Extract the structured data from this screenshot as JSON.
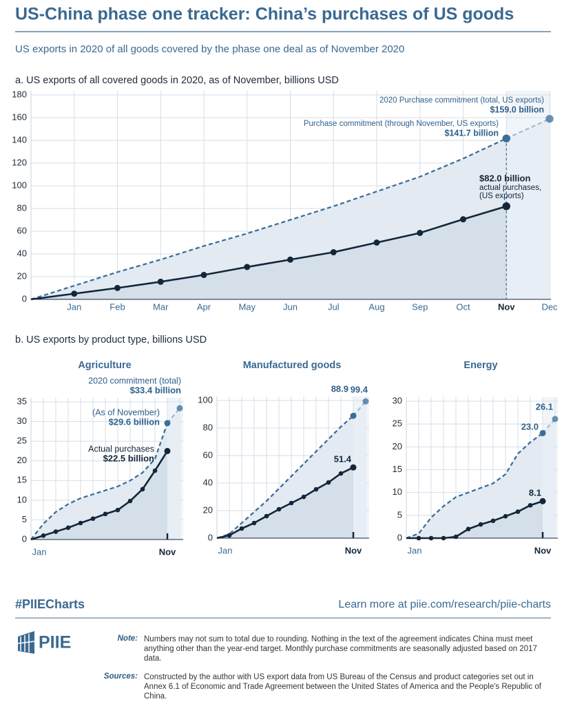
{
  "header": {
    "title": "US-China phase one tracker: China’s purchases of US goods",
    "subtitle": "US exports in 2020 of all goods covered by the phase one deal as of November 2020",
    "section_b": "b. US exports by product type, billions USD"
  },
  "footer": {
    "hashtag": "#PIIECharts",
    "link": "Learn more at piie.com/research/piie-charts",
    "logo": "PIIE",
    "note_label": "Note:",
    "note": "Numbers may not sum to total due to rounding. Nothing in the text of the agreement indicates China must meet anything other than the year-end target. Monthly purchase commitments are seasonally adjusted based on 2017 data.",
    "sources_label": "Sources:",
    "sources": "Constructed by the author with US export data from US Bureau of the Census and product categories set out in Annex 6.1 of Economic and Trade Agreement between the United States of America and the People's Republic of China."
  },
  "chart_data": [
    {
      "type": "line",
      "title": "a. US exports of all covered goods in 2020, as of November, billions USD",
      "categories": [
        null,
        "Jan",
        "Feb",
        "Mar",
        "Apr",
        "May",
        "Jun",
        "Jul",
        "Aug",
        "Sep",
        "Oct",
        "Nov",
        "Dec"
      ],
      "series": [
        {
          "color": "#3b6e99",
          "dashed": true,
          "values": [
            0,
            12,
            24,
            35,
            47,
            58,
            70,
            82,
            95,
            108,
            124,
            141.7,
            159.0
          ],
          "value_labels": [
            null,
            null,
            null,
            null,
            null,
            null,
            null,
            null,
            null,
            null,
            null,
            "$141.7 billion",
            "$159.0 billion"
          ],
          "value_notes": [
            null,
            null,
            null,
            null,
            null,
            null,
            null,
            null,
            null,
            null,
            null,
            [
              "Purchase commitment (through November, US exports)"
            ],
            [
              "2020 Purchase commitment (total, US exports)"
            ]
          ]
        },
        {
          "color": "#13263a",
          "values": [
            0,
            5,
            10,
            15.5,
            21.5,
            28.5,
            35,
            41.5,
            50,
            58.5,
            70.5,
            82.0,
            null
          ],
          "value_labels": [
            null,
            null,
            null,
            null,
            null,
            null,
            null,
            null,
            null,
            null,
            null,
            "$82.0 billion",
            null
          ],
          "value_notes": [
            null,
            null,
            null,
            null,
            null,
            null,
            null,
            null,
            null,
            null,
            null,
            [
              "actual purchases,",
              "(US exports)"
            ],
            null
          ]
        }
      ],
      "ylim": [
        0,
        180
      ],
      "yticks": [
        0,
        20,
        40,
        60,
        80,
        100,
        120,
        140,
        160,
        180
      ],
      "grid": true
    },
    {
      "type": "line",
      "title": "Agriculture",
      "categories": [
        null,
        "Jan",
        null,
        null,
        null,
        null,
        null,
        null,
        null,
        null,
        null,
        "Nov",
        null
      ],
      "series": [
        {
          "color": "#3b6e99",
          "dashed": true,
          "values": [
            0,
            4,
            7,
            9,
            10.5,
            11.5,
            12.5,
            13.5,
            15,
            17,
            20.5,
            29.6,
            33.4
          ],
          "value_labels": [
            null,
            null,
            null,
            null,
            null,
            null,
            null,
            null,
            null,
            null,
            null,
            "$29.6 billion",
            "$33.4 billion"
          ],
          "value_notes": [
            null,
            null,
            null,
            null,
            null,
            null,
            null,
            null,
            null,
            null,
            null,
            [
              "(As of November)"
            ],
            [
              "2020 commitment (total)"
            ]
          ]
        },
        {
          "color": "#13263a",
          "values": [
            0,
            1,
            2,
            3,
            4.2,
            5.3,
            6.5,
            7.5,
            9.8,
            12.8,
            17.5,
            22.5,
            null
          ],
          "value_labels": [
            null,
            null,
            null,
            null,
            null,
            null,
            null,
            null,
            null,
            null,
            null,
            "$22.5 billion",
            null
          ],
          "value_notes": [
            null,
            null,
            null,
            null,
            null,
            null,
            null,
            null,
            null,
            null,
            null,
            [
              "Actual purchases"
            ],
            null
          ]
        }
      ],
      "ylim": [
        0,
        35
      ],
      "yticks": [
        0,
        5,
        10,
        15,
        20,
        25,
        30,
        35
      ],
      "grid": true
    },
    {
      "type": "line",
      "title": "Manufactured goods",
      "categories": [
        null,
        "Jan",
        null,
        null,
        null,
        null,
        null,
        null,
        null,
        null,
        null,
        "Nov",
        null
      ],
      "series": [
        {
          "color": "#3b6e99",
          "dashed": true,
          "values": [
            0,
            3,
            11,
            19,
            27,
            36,
            45,
            54,
            63,
            72,
            81,
            88.9,
            99.4
          ]
        },
        {
          "color": "#13263a",
          "values": [
            0,
            2,
            7,
            11,
            16,
            21,
            25.5,
            30,
            35.5,
            40.5,
            47,
            51.4,
            null
          ]
        }
      ],
      "ylim": [
        0,
        100
      ],
      "yticks": [
        0,
        20,
        40,
        60,
        80,
        100
      ],
      "grid": true
    },
    {
      "type": "line",
      "title": "Energy",
      "categories": [
        null,
        "Jan",
        null,
        null,
        null,
        null,
        null,
        null,
        null,
        null,
        null,
        "Nov",
        null
      ],
      "series": [
        {
          "color": "#3b6e99",
          "dashed": true,
          "values": [
            0,
            1,
            4.5,
            7,
            9,
            10,
            11,
            12,
            14,
            18.5,
            21,
            23.0,
            26.1
          ],
          "value_labels": [
            null,
            null,
            null,
            null,
            null,
            null,
            null,
            null,
            null,
            null,
            null,
            "23.0",
            null
          ]
        },
        {
          "color": "#13263a",
          "values": [
            0,
            0,
            0,
            0,
            0.3,
            2,
            3,
            3.8,
            4.8,
            5.8,
            7.2,
            8.1,
            null
          ]
        }
      ],
      "ylim": [
        0,
        30
      ],
      "yticks": [
        0,
        5,
        10,
        15,
        20,
        25,
        30
      ],
      "grid": true
    }
  ]
}
